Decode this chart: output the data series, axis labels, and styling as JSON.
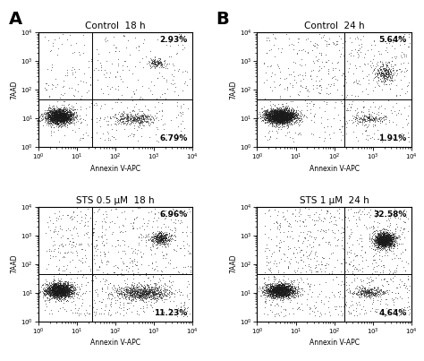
{
  "panels": [
    {
      "title": "Control  18 h",
      "upper_right_pct": "2.93%",
      "lower_right_pct": "6.79%",
      "gate_x": 25,
      "gate_y": 45,
      "main_cluster": {
        "x_mean": 3.5,
        "x_lsig": 0.4,
        "y_mean": 12,
        "y_lsig": 0.3,
        "n": 2200
      },
      "lower_right_cluster": {
        "x_mean": 300,
        "x_lsig": 0.7,
        "y_mean": 10,
        "y_lsig": 0.25,
        "n": 380
      },
      "upper_right_cluster": {
        "x_mean": 1200,
        "x_lsig": 0.25,
        "y_mean": 900,
        "y_lsig": 0.2,
        "n": 130
      },
      "mid_scatter_n": 400,
      "row": 0,
      "col": 0
    },
    {
      "title": "Control  24 h",
      "upper_right_pct": "5.64%",
      "lower_right_pct": "1.91%",
      "gate_x": 180,
      "gate_y": 45,
      "main_cluster": {
        "x_mean": 4,
        "x_lsig": 0.45,
        "y_mean": 12,
        "y_lsig": 0.3,
        "n": 2800
      },
      "lower_right_cluster": {
        "x_mean": 800,
        "x_lsig": 0.5,
        "y_mean": 10,
        "y_lsig": 0.2,
        "n": 180
      },
      "upper_right_cluster": {
        "x_mean": 2000,
        "x_lsig": 0.3,
        "y_mean": 400,
        "y_lsig": 0.4,
        "n": 280
      },
      "mid_scatter_n": 600,
      "row": 0,
      "col": 1
    },
    {
      "title": "STS 0.5 μM  18 h",
      "upper_right_pct": "6.96%",
      "lower_right_pct": "11.23%",
      "gate_x": 25,
      "gate_y": 45,
      "main_cluster": {
        "x_mean": 3.5,
        "x_lsig": 0.4,
        "y_mean": 12,
        "y_lsig": 0.3,
        "n": 2000
      },
      "lower_right_cluster": {
        "x_mean": 500,
        "x_lsig": 0.8,
        "y_mean": 10,
        "y_lsig": 0.3,
        "n": 900
      },
      "upper_right_cluster": {
        "x_mean": 1500,
        "x_lsig": 0.3,
        "y_mean": 800,
        "y_lsig": 0.25,
        "n": 450
      },
      "mid_scatter_n": 800,
      "row": 1,
      "col": 0
    },
    {
      "title": "STS 1 μM  24 h",
      "upper_right_pct": "32.58%",
      "lower_right_pct": "4.64%",
      "gate_x": 180,
      "gate_y": 45,
      "main_cluster": {
        "x_mean": 4,
        "x_lsig": 0.45,
        "y_mean": 12,
        "y_lsig": 0.3,
        "n": 1800
      },
      "lower_right_cluster": {
        "x_mean": 800,
        "x_lsig": 0.5,
        "y_mean": 10,
        "y_lsig": 0.2,
        "n": 300
      },
      "upper_right_cluster": {
        "x_mean": 2000,
        "x_lsig": 0.3,
        "y_mean": 700,
        "y_lsig": 0.3,
        "n": 1600
      },
      "mid_scatter_n": 900,
      "row": 1,
      "col": 1
    }
  ],
  "xlabel": "Annexin V-APC",
  "ylabel": "7AAD",
  "xlim": [
    1,
    10000
  ],
  "ylim": [
    1,
    10000
  ],
  "background_color": "#ffffff",
  "dot_color": "#1a1a1a",
  "dot_alpha": 0.6,
  "dot_size": 0.4,
  "figsize": [
    4.74,
    4.03
  ],
  "dpi": 100
}
